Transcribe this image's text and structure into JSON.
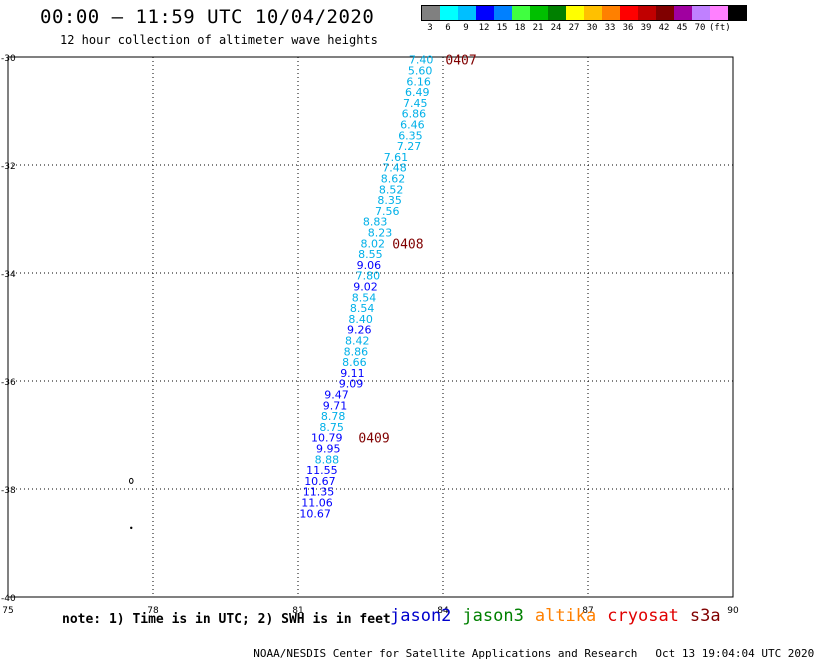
{
  "header": {
    "title": "00:00 – 11:59 UTC 10/04/2020",
    "subtitle": "12 hour collection of altimeter wave heights"
  },
  "colorbar": {
    "colors": [
      "#808080",
      "#00ffff",
      "#00bfff",
      "#0000ff",
      "#0080ff",
      "#40ff40",
      "#00c000",
      "#008000",
      "#ffff00",
      "#ffc000",
      "#ff8000",
      "#ff0000",
      "#c00000",
      "#800000",
      "#a000a0",
      "#c080ff",
      "#ff80ff",
      "#000000"
    ],
    "labels": [
      "3",
      "6",
      "9",
      "12",
      "15",
      "18",
      "21",
      "24",
      "27",
      "30",
      "33",
      "36",
      "39",
      "42",
      "45",
      "70",
      "(ft)"
    ]
  },
  "chart_data": {
    "type": "scatter",
    "xlim": [
      75,
      90
    ],
    "ylim": [
      -40,
      -30
    ],
    "xticks": [
      "75",
      "78",
      "81",
      "84",
      "87",
      "90"
    ],
    "yticks": [
      "-30",
      "-32",
      "-34",
      "-36",
      "-38",
      "-40"
    ],
    "grid": true,
    "points": [
      {
        "x": 83.8,
        "y": -30.05,
        "label": "7.40"
      },
      {
        "x": 83.78,
        "y": -30.25,
        "label": "5.60"
      },
      {
        "x": 83.75,
        "y": -30.45,
        "label": "6.16"
      },
      {
        "x": 83.72,
        "y": -30.65,
        "label": "6.49"
      },
      {
        "x": 83.68,
        "y": -30.85,
        "label": "7.45"
      },
      {
        "x": 83.65,
        "y": -31.05,
        "label": "6.86"
      },
      {
        "x": 83.62,
        "y": -31.25,
        "label": "6.46"
      },
      {
        "x": 83.58,
        "y": -31.45,
        "label": "6.35"
      },
      {
        "x": 83.55,
        "y": -31.65,
        "label": "7.27"
      },
      {
        "x": 83.28,
        "y": -31.85,
        "label": "7.61"
      },
      {
        "x": 83.25,
        "y": -32.05,
        "label": "7.48"
      },
      {
        "x": 83.22,
        "y": -32.25,
        "label": "8.62"
      },
      {
        "x": 83.18,
        "y": -32.45,
        "label": "8.52"
      },
      {
        "x": 83.15,
        "y": -32.65,
        "label": "8.35"
      },
      {
        "x": 83.1,
        "y": -32.85,
        "label": "7.56"
      },
      {
        "x": 82.85,
        "y": -33.05,
        "label": "8.83"
      },
      {
        "x": 82.95,
        "y": -33.25,
        "label": "8.23"
      },
      {
        "x": 82.8,
        "y": -33.45,
        "label": "8.02"
      },
      {
        "x": 82.75,
        "y": -33.65,
        "label": "8.55"
      },
      {
        "x": 82.72,
        "y": -33.85,
        "label": "9.06"
      },
      {
        "x": 82.7,
        "y": -34.05,
        "label": "7.80"
      },
      {
        "x": 82.65,
        "y": -34.25,
        "label": "9.02"
      },
      {
        "x": 82.62,
        "y": -34.45,
        "label": "8.54"
      },
      {
        "x": 82.58,
        "y": -34.65,
        "label": "8.54"
      },
      {
        "x": 82.55,
        "y": -34.85,
        "label": "8.40"
      },
      {
        "x": 82.52,
        "y": -35.05,
        "label": "9.26"
      },
      {
        "x": 82.48,
        "y": -35.25,
        "label": "8.42"
      },
      {
        "x": 82.45,
        "y": -35.45,
        "label": "8.86"
      },
      {
        "x": 82.42,
        "y": -35.65,
        "label": "8.66"
      },
      {
        "x": 82.38,
        "y": -35.85,
        "label": "9.11"
      },
      {
        "x": 82.35,
        "y": -36.05,
        "label": "9.09"
      },
      {
        "x": 82.05,
        "y": -36.25,
        "label": "9.47"
      },
      {
        "x": 82.02,
        "y": -36.45,
        "label": "9.71"
      },
      {
        "x": 81.98,
        "y": -36.65,
        "label": "8.78"
      },
      {
        "x": 81.95,
        "y": -36.85,
        "label": "8.75"
      },
      {
        "x": 81.92,
        "y": -37.05,
        "label": "10.79"
      },
      {
        "x": 81.88,
        "y": -37.25,
        "label": "9.95"
      },
      {
        "x": 81.85,
        "y": -37.45,
        "label": "8.88"
      },
      {
        "x": 81.82,
        "y": -37.65,
        "label": "11.55"
      },
      {
        "x": 81.78,
        "y": -37.85,
        "label": "10.67"
      },
      {
        "x": 81.75,
        "y": -38.05,
        "label": "11.35"
      },
      {
        "x": 81.72,
        "y": -38.25,
        "label": "11.06"
      },
      {
        "x": 81.68,
        "y": -38.45,
        "label": "10.67"
      }
    ],
    "annotations": [
      {
        "x": 84.05,
        "y": -30.05,
        "label": "0407"
      },
      {
        "x": 82.95,
        "y": -33.45,
        "label": "0408"
      },
      {
        "x": 82.25,
        "y": -37.05,
        "label": "0409"
      }
    ]
  },
  "footer": {
    "note": "note: 1) Time is in UTC; 2) SWH is in feet",
    "satellites": [
      {
        "name": "jason2",
        "color": "#0000cc"
      },
      {
        "name": "jason3",
        "color": "#008000"
      },
      {
        "name": "altika",
        "color": "#ff8000"
      },
      {
        "name": "cryosat",
        "color": "#e00000"
      },
      {
        "name": "s3a",
        "color": "#800000"
      }
    ],
    "credit": "NOAA/NESDIS Center for Satellite Applications and Research",
    "timestamp": "Oct 13 19:04:04 UTC 2020"
  }
}
